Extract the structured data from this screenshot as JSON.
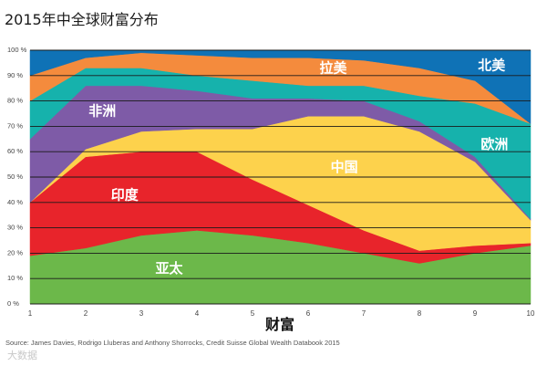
{
  "title": "2015年中全球财富分布",
  "source": "Source: James Davies, Rodrigo Lluberas and Anthony Shorrocks, Credit Suisse Global Wealth Databook 2015",
  "watermark": "大数据",
  "chart_data": {
    "type": "area",
    "stacked": true,
    "percent_stacked": true,
    "title": "2015年中全球财富分布",
    "xlabel": "财富",
    "ylabel": "",
    "x": [
      1,
      2,
      3,
      4,
      5,
      6,
      7,
      8,
      9,
      10
    ],
    "x_tick_labels": [
      "1",
      "2",
      "3",
      "4",
      "5",
      "6",
      "7",
      "8",
      "9",
      "10"
    ],
    "y_tick_labels": [
      "0 %",
      "10 %",
      "20 %",
      "30 %",
      "40 %",
      "50 %",
      "60 %",
      "70 %",
      "80 %",
      "90 %",
      "100 %"
    ],
    "ylim": [
      0,
      100
    ],
    "grid": true,
    "series": [
      {
        "name": "亚太",
        "color": "#6cb84a",
        "values": [
          19,
          22,
          27,
          29,
          27,
          24,
          20,
          16,
          20,
          23
        ]
      },
      {
        "name": "印度",
        "color": "#e8242b",
        "values": [
          21,
          36,
          33,
          31,
          22,
          15,
          9,
          5,
          3,
          1
        ]
      },
      {
        "name": "中国",
        "color": "#fdd24c",
        "values": [
          0,
          3,
          8,
          9,
          20,
          35,
          45,
          47,
          33,
          9
        ]
      },
      {
        "name": "非洲",
        "color": "#7e5ba7",
        "values": [
          25,
          25,
          18,
          15,
          12,
          7,
          6,
          4,
          2,
          0.5
        ]
      },
      {
        "name": "欧洲",
        "color": "#16b2ac",
        "values": [
          15,
          7,
          7,
          6,
          7,
          5,
          6,
          10,
          21,
          37.5
        ]
      },
      {
        "name": "拉美",
        "color": "#f48b3d",
        "values": [
          10,
          4,
          6,
          8,
          9,
          11,
          10,
          11,
          9,
          0
        ]
      },
      {
        "name": "北美",
        "color": "#0f72b6",
        "values": [
          10,
          3,
          1,
          2,
          3,
          3,
          4,
          7,
          12,
          29
        ]
      }
    ]
  }
}
